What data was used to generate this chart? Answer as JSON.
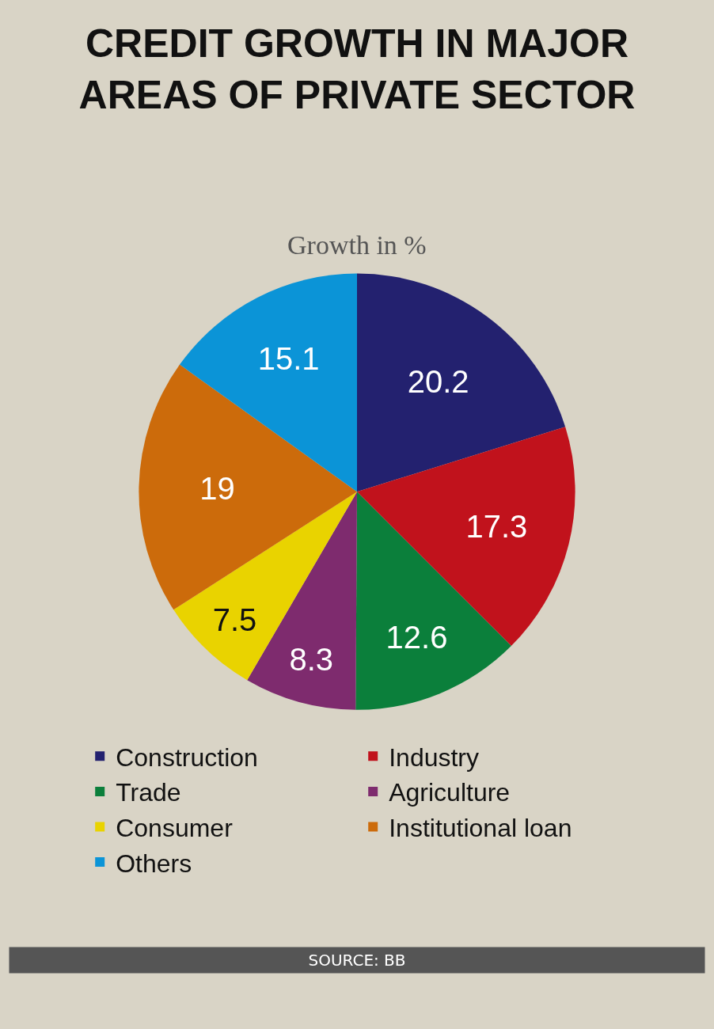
{
  "chart_data": {
    "type": "pie",
    "title": "CREDIT GROWTH IN MAJOR AREAS OF PRIVATE SECTOR",
    "subtitle": "Growth in %",
    "categories": [
      "Construction",
      "Industry",
      "Trade",
      "Agriculture",
      "Consumer",
      "Institutional loan",
      "Others"
    ],
    "values": [
      20.2,
      17.3,
      12.6,
      8.3,
      7.5,
      19,
      15.1
    ],
    "colors": [
      "#23216f",
      "#c1121c",
      "#0b7f3b",
      "#7e2b6e",
      "#e9d300",
      "#cc6b0b",
      "#0b94d7"
    ],
    "data_labels": true,
    "legend": "bottom",
    "annotations": [
      "SOURCE: BB"
    ]
  }
}
